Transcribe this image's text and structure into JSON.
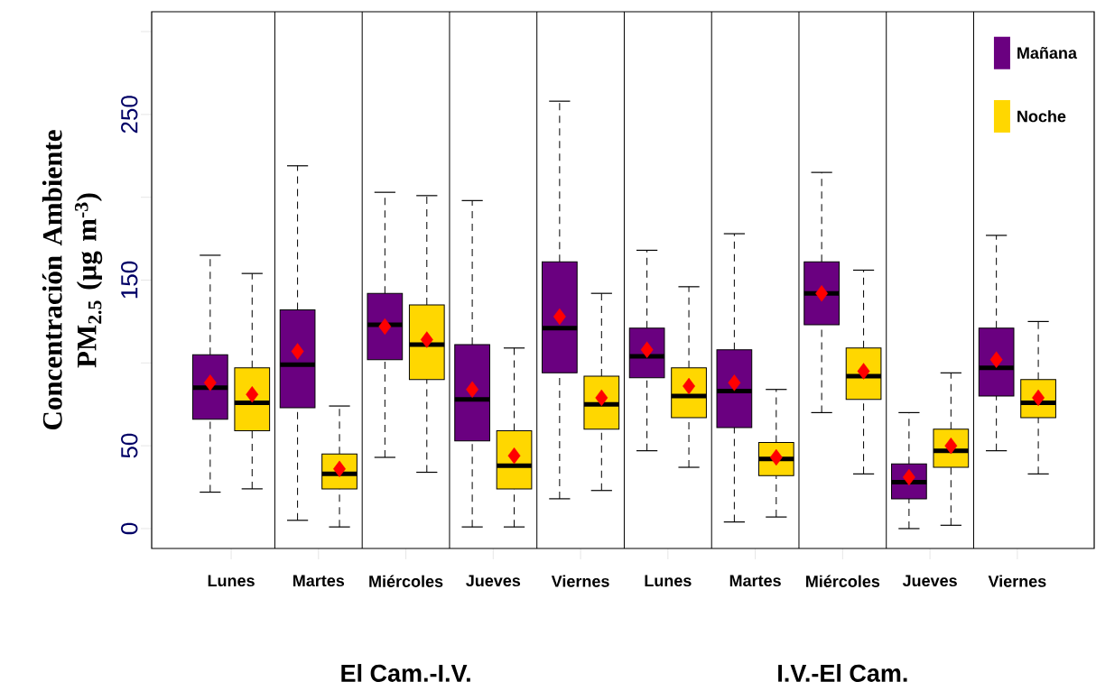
{
  "chart_data": {
    "type": "box",
    "ylabel": "Concentración Ambiente PM$_{2.5}$ (µg m$^{-3}$)",
    "categories": [
      "Lunes",
      "Martes",
      "Miércoles",
      "Jueves",
      "Viernes",
      "Lunes",
      "Martes",
      "Miércoles",
      "Jueves",
      "Viernes"
    ],
    "ylim": [
      -12,
      312
    ],
    "yticks": [
      0,
      50,
      {
        "value": 100,
        "label": null
      },
      150,
      {
        "value": 200,
        "label": null
      },
      250,
      {
        "value": 300,
        "label": null
      }
    ],
    "legend": "top right",
    "annotations": [
      "El Cam.-I.V.",
      "I.V.-El Cam."
    ],
    "series": [
      {
        "name": "Mañana",
        "color": "#6a0080",
        "boxes": [
          {
            "low": 22,
            "q1": 66,
            "median": 85,
            "q3": 105,
            "high": 165,
            "mean": 88
          },
          {
            "low": 5,
            "q1": 73,
            "median": 99,
            "q3": 132,
            "high": 219,
            "mean": 107
          },
          {
            "low": 43,
            "q1": 102,
            "median": 123,
            "q3": 142,
            "high": 203,
            "mean": 122
          },
          {
            "low": 1,
            "q1": 53,
            "median": 78,
            "q3": 111,
            "high": 198,
            "mean": 84
          },
          {
            "low": 18,
            "q1": 94,
            "median": 121,
            "q3": 161,
            "high": 258,
            "mean": 128
          },
          {
            "low": 47,
            "q1": 91,
            "median": 104,
            "q3": 121,
            "high": 168,
            "mean": 108
          },
          {
            "low": 4,
            "q1": 61,
            "median": 83,
            "q3": 108,
            "high": 178,
            "mean": 88
          },
          {
            "low": 70,
            "q1": 123,
            "median": 142,
            "q3": 161,
            "high": 215,
            "mean": 142
          },
          {
            "low": 0,
            "q1": 18,
            "median": 28,
            "q3": 39,
            "high": 70,
            "mean": 31
          },
          {
            "low": 47,
            "q1": 80,
            "median": 97,
            "q3": 121,
            "high": 177,
            "mean": 102
          }
        ]
      },
      {
        "name": "Noche",
        "color": "#ffd700",
        "boxes": [
          {
            "low": 24,
            "q1": 59,
            "median": 76,
            "q3": 97,
            "high": 154,
            "mean": 81
          },
          {
            "low": 1,
            "q1": 24,
            "median": 33,
            "q3": 45,
            "high": 74,
            "mean": 36
          },
          {
            "low": 34,
            "q1": 90,
            "median": 111,
            "q3": 135,
            "high": 201,
            "mean": 114
          },
          {
            "low": 1,
            "q1": 24,
            "median": 38,
            "q3": 59,
            "high": 109,
            "mean": 44
          },
          {
            "low": 23,
            "q1": 60,
            "median": 75,
            "q3": 92,
            "high": 142,
            "mean": 79
          },
          {
            "low": 37,
            "q1": 67,
            "median": 80,
            "q3": 97,
            "high": 146,
            "mean": 86
          },
          {
            "low": 7,
            "q1": 32,
            "median": 42,
            "q3": 52,
            "high": 84,
            "mean": 43
          },
          {
            "low": 33,
            "q1": 78,
            "median": 92,
            "q3": 109,
            "high": 156,
            "mean": 95
          },
          {
            "low": 2,
            "q1": 37,
            "median": 47,
            "q3": 60,
            "high": 94,
            "mean": 50
          },
          {
            "low": 33,
            "q1": 67,
            "median": 76,
            "q3": 90,
            "high": 125,
            "mean": 79
          }
        ]
      }
    ]
  }
}
